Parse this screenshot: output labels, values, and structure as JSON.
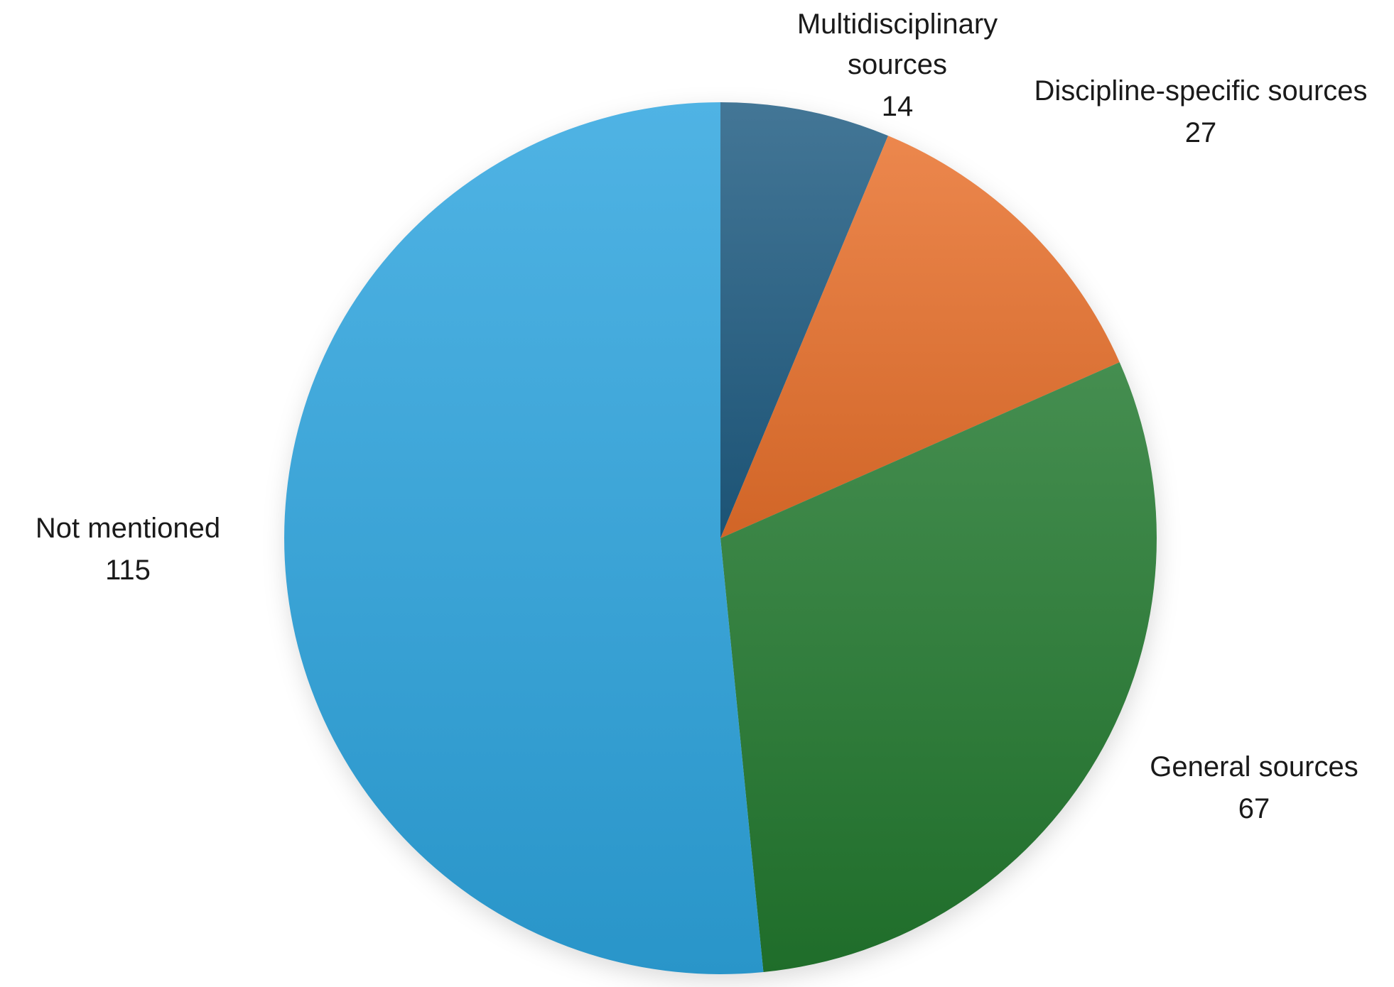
{
  "chart_data": {
    "type": "pie",
    "title": "",
    "categories": [
      "Multidisciplinary sources",
      "Discipline-specific sources",
      "General sources",
      "Not mentioned"
    ],
    "values": [
      14,
      27,
      67,
      115
    ],
    "total": 223,
    "colors": [
      "#1f5c82",
      "#e8702b",
      "#22792f",
      "#2ea5df"
    ],
    "start_angle_deg": 0,
    "direction": "clockwise",
    "legend_position": "none",
    "data_labels": "category name and value, placed outside slices",
    "background": "#ffffff",
    "text_color": "#1a1a1a"
  }
}
